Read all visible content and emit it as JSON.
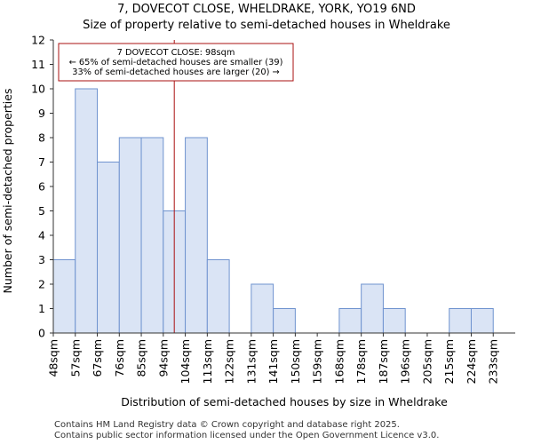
{
  "chart_data": {
    "type": "bar",
    "title": "7, DOVECOT CLOSE, WHELDRAKE, YORK, YO19 6ND",
    "subtitle": "Size of property relative to semi-detached houses in Wheldrake",
    "xlabel": "Distribution of semi-detached houses by size in Wheldrake",
    "ylabel": "Number of semi-detached properties",
    "categories": [
      "48sqm",
      "57sqm",
      "67sqm",
      "76sqm",
      "85sqm",
      "94sqm",
      "104sqm",
      "113sqm",
      "122sqm",
      "131sqm",
      "141sqm",
      "150sqm",
      "159sqm",
      "168sqm",
      "178sqm",
      "187sqm",
      "196sqm",
      "205sqm",
      "215sqm",
      "224sqm",
      "233sqm"
    ],
    "values": [
      3,
      10,
      7,
      8,
      8,
      5,
      8,
      3,
      0,
      2,
      1,
      0,
      0,
      1,
      2,
      1,
      0,
      0,
      1,
      1,
      0
    ],
    "ylim": [
      0,
      12
    ],
    "yticks": [
      0,
      1,
      2,
      3,
      4,
      5,
      6,
      7,
      8,
      9,
      10,
      11,
      12
    ],
    "grid": false,
    "bar_color": "#dae4f5",
    "bar_edge_color": "#6f93cf",
    "marker": {
      "value_sqm": 98,
      "position_index": 5.5,
      "color": "#aa1111",
      "annotation": [
        "7 DOVECOT CLOSE: 98sqm",
        "← 65% of semi-detached houses are smaller (39)",
        "33% of semi-detached houses are larger (20) →"
      ]
    }
  },
  "footer": {
    "line1": "Contains HM Land Registry data © Crown copyright and database right 2025.",
    "line2": "Contains public sector information licensed under the Open Government Licence v3.0."
  }
}
